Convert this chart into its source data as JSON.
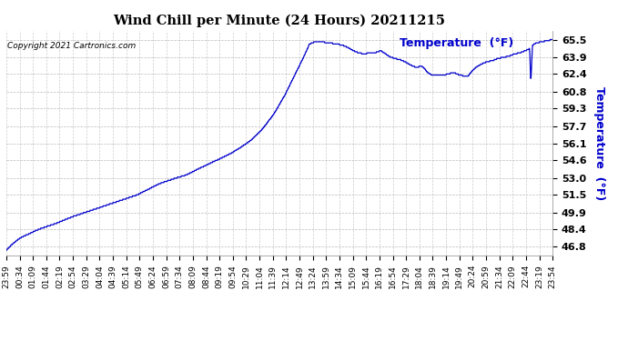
{
  "title": "Wind Chill per Minute (24 Hours) 20211215",
  "ylabel": "Temperature  (°F)",
  "copyright_text": "Copyright 2021 Cartronics.com",
  "line_color": "#0000cc",
  "ylabel_color": "#0000cc",
  "background_color": "#ffffff",
  "plot_bg_color": "#ffffff",
  "grid_color": "#aaaaaa",
  "yticks": [
    46.8,
    48.4,
    49.9,
    51.5,
    53.0,
    54.6,
    56.1,
    57.7,
    59.3,
    60.8,
    62.4,
    63.9,
    65.5
  ],
  "ymin": 46.0,
  "ymax": 66.3,
  "x_labels": [
    "23:59",
    "00:34",
    "01:09",
    "01:44",
    "02:19",
    "02:54",
    "03:29",
    "04:04",
    "04:39",
    "05:14",
    "05:49",
    "06:24",
    "06:59",
    "07:34",
    "08:09",
    "08:44",
    "09:19",
    "09:54",
    "10:29",
    "11:04",
    "11:39",
    "12:14",
    "12:49",
    "13:24",
    "13:59",
    "14:34",
    "15:09",
    "15:44",
    "16:19",
    "16:54",
    "17:29",
    "18:04",
    "18:39",
    "19:14",
    "19:49",
    "20:24",
    "20:59",
    "21:34",
    "22:09",
    "22:44",
    "23:19",
    "23:54"
  ],
  "key_points": [
    [
      0.0,
      46.5
    ],
    [
      0.01,
      47.0
    ],
    [
      0.025,
      47.6
    ],
    [
      0.06,
      48.4
    ],
    [
      0.09,
      48.9
    ],
    [
      0.12,
      49.5
    ],
    [
      0.15,
      50.0
    ],
    [
      0.18,
      50.5
    ],
    [
      0.21,
      51.0
    ],
    [
      0.24,
      51.5
    ],
    [
      0.26,
      52.0
    ],
    [
      0.28,
      52.5
    ],
    [
      0.31,
      53.0
    ],
    [
      0.33,
      53.3
    ],
    [
      0.35,
      53.8
    ],
    [
      0.38,
      54.5
    ],
    [
      0.41,
      55.2
    ],
    [
      0.43,
      55.8
    ],
    [
      0.45,
      56.5
    ],
    [
      0.47,
      57.5
    ],
    [
      0.49,
      58.8
    ],
    [
      0.51,
      60.5
    ],
    [
      0.53,
      62.5
    ],
    [
      0.545,
      64.0
    ],
    [
      0.555,
      65.1
    ],
    [
      0.565,
      65.3
    ],
    [
      0.575,
      65.3
    ],
    [
      0.59,
      65.2
    ],
    [
      0.605,
      65.1
    ],
    [
      0.615,
      65.0
    ],
    [
      0.625,
      64.8
    ],
    [
      0.635,
      64.5
    ],
    [
      0.645,
      64.3
    ],
    [
      0.655,
      64.2
    ],
    [
      0.665,
      64.3
    ],
    [
      0.675,
      64.3
    ],
    [
      0.685,
      64.5
    ],
    [
      0.695,
      64.2
    ],
    [
      0.7,
      64.0
    ],
    [
      0.71,
      63.8
    ],
    [
      0.72,
      63.7
    ],
    [
      0.73,
      63.5
    ],
    [
      0.74,
      63.2
    ],
    [
      0.75,
      63.0
    ],
    [
      0.76,
      63.1
    ],
    [
      0.765,
      62.9
    ],
    [
      0.77,
      62.6
    ],
    [
      0.775,
      62.4
    ],
    [
      0.78,
      62.3
    ],
    [
      0.79,
      62.3
    ],
    [
      0.8,
      62.3
    ],
    [
      0.81,
      62.4
    ],
    [
      0.815,
      62.5
    ],
    [
      0.82,
      62.5
    ],
    [
      0.825,
      62.4
    ],
    [
      0.83,
      62.3
    ],
    [
      0.84,
      62.2
    ],
    [
      0.845,
      62.2
    ],
    [
      0.85,
      62.5
    ],
    [
      0.855,
      62.8
    ],
    [
      0.86,
      63.0
    ],
    [
      0.87,
      63.3
    ],
    [
      0.88,
      63.5
    ],
    [
      0.89,
      63.6
    ],
    [
      0.9,
      63.8
    ],
    [
      0.91,
      63.9
    ],
    [
      0.92,
      64.0
    ],
    [
      0.93,
      64.2
    ],
    [
      0.94,
      64.3
    ],
    [
      0.945,
      64.4
    ],
    [
      0.95,
      64.5
    ],
    [
      0.955,
      64.6
    ],
    [
      0.958,
      64.7
    ],
    [
      0.96,
      61.5
    ],
    [
      0.963,
      65.0
    ],
    [
      0.97,
      65.2
    ],
    [
      0.98,
      65.3
    ],
    [
      0.99,
      65.4
    ],
    [
      1.0,
      65.5
    ]
  ]
}
